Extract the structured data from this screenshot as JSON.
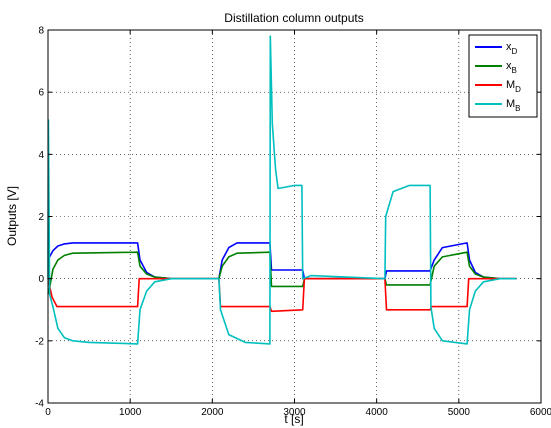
{
  "chart_data": {
    "type": "line",
    "title": "Distillation column outputs",
    "xlabel": "t [s]",
    "ylabel": "Outputs [V]",
    "xlim": [
      0,
      6000
    ],
    "ylim": [
      -4,
      8
    ],
    "xticks": [
      0,
      1000,
      2000,
      3000,
      4000,
      5000,
      6000
    ],
    "yticks": [
      -4,
      -2,
      0,
      2,
      4,
      6,
      8
    ],
    "grid": true,
    "legend_position": "top-right",
    "legend": [
      {
        "main": "x",
        "sub": "D"
      },
      {
        "main": "x",
        "sub": "B"
      },
      {
        "main": "M",
        "sub": "D"
      },
      {
        "main": "M",
        "sub": "B"
      }
    ],
    "series": [
      {
        "name": "x_D",
        "color": "#0000ff",
        "x": [
          0,
          20,
          60,
          120,
          200,
          300,
          1090,
          1120,
          1200,
          1300,
          1500,
          2080,
          2120,
          2200,
          2300,
          2700,
          2720,
          3100,
          3120,
          4100,
          4120,
          4650,
          4700,
          4800,
          5100,
          5130,
          5200,
          5300,
          5500,
          5700
        ],
        "y": [
          0.9,
          0.7,
          0.9,
          1.05,
          1.12,
          1.15,
          1.15,
          0.6,
          0.2,
          0.05,
          0.0,
          0.0,
          0.6,
          1.0,
          1.15,
          1.15,
          0.28,
          0.28,
          0.0,
          0.0,
          0.25,
          0.25,
          0.6,
          1.0,
          1.15,
          0.6,
          0.2,
          0.05,
          0.0,
          0.0
        ]
      },
      {
        "name": "x_B",
        "color": "#007f00",
        "x": [
          0,
          20,
          60,
          120,
          200,
          300,
          1090,
          1120,
          1200,
          1300,
          1500,
          2080,
          2120,
          2200,
          2300,
          2700,
          2720,
          3100,
          3120,
          4100,
          4120,
          4650,
          4700,
          4800,
          5100,
          5130,
          5200,
          5300,
          5500,
          5700
        ],
        "y": [
          -0.5,
          -0.3,
          0.3,
          0.6,
          0.75,
          0.82,
          0.85,
          0.4,
          0.15,
          0.05,
          0.0,
          0.0,
          0.4,
          0.7,
          0.82,
          0.85,
          -0.25,
          -0.25,
          0.0,
          0.0,
          -0.2,
          -0.2,
          0.4,
          0.7,
          0.85,
          0.4,
          0.15,
          0.05,
          0.0,
          0.0
        ]
      },
      {
        "name": "M_D",
        "color": "#ff0000",
        "x": [
          0,
          50,
          110,
          130,
          1090,
          1110,
          1500,
          2080,
          2100,
          2700,
          2720,
          3100,
          3120,
          4100,
          4120,
          4650,
          4670,
          5100,
          5120,
          5700
        ],
        "y": [
          0.0,
          -0.6,
          -0.9,
          -0.9,
          -0.9,
          0.0,
          0.0,
          0.0,
          -0.9,
          -0.9,
          -1.05,
          -1.0,
          0.0,
          0.0,
          -1.0,
          -1.0,
          -0.9,
          -0.9,
          0.0,
          0.0
        ]
      },
      {
        "name": "M_B",
        "color": "#00bfbf",
        "x": [
          0,
          5,
          20,
          60,
          120,
          200,
          300,
          500,
          1090,
          1120,
          1200,
          1300,
          1500,
          2080,
          2100,
          2200,
          2400,
          2700,
          2705,
          2730,
          2770,
          2800,
          3000,
          3090,
          3100,
          3200,
          4100,
          4110,
          4200,
          4400,
          4600,
          4650,
          4660,
          4700,
          4800,
          5100,
          5130,
          5200,
          5300,
          5500,
          5700
        ],
        "y": [
          0.0,
          5.1,
          -0.5,
          -0.9,
          -1.6,
          -1.9,
          -2.0,
          -2.05,
          -2.1,
          -1.0,
          -0.4,
          -0.1,
          0.0,
          0.0,
          -1.0,
          -1.8,
          -2.05,
          -2.1,
          7.8,
          5.0,
          3.5,
          2.9,
          3.0,
          3.0,
          0.0,
          0.1,
          0.0,
          2.0,
          2.8,
          3.0,
          3.0,
          3.0,
          -0.9,
          -1.6,
          -2.0,
          -2.1,
          -1.0,
          -0.4,
          -0.1,
          0.0,
          0.0
        ]
      }
    ]
  }
}
